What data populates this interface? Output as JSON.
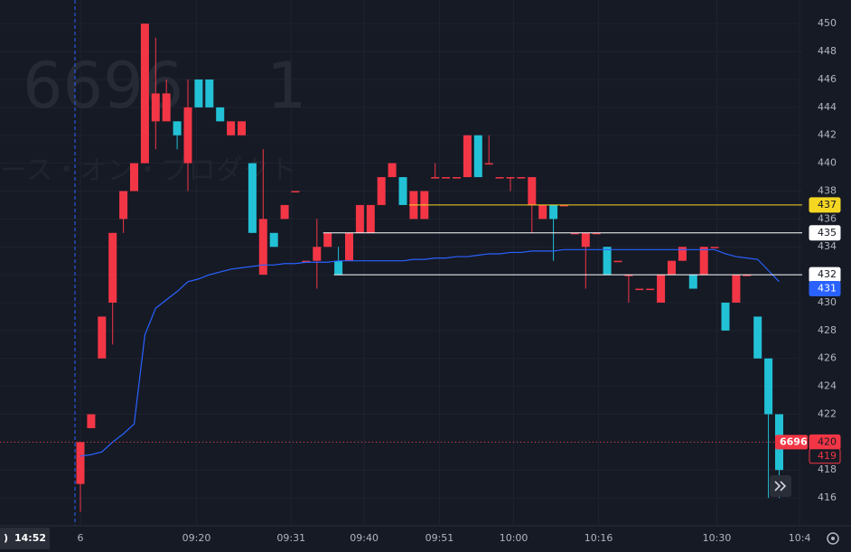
{
  "chart_data": {
    "type": "candlestick",
    "watermark": [
      "6696",
      "1"
    ],
    "watermark_subtitle": "ース・オン・プロダクト",
    "up_color": "#f23645",
    "down_color": "#22c1d6",
    "grid": true,
    "open": [
      417,
      421,
      426,
      430,
      436,
      438,
      440,
      443,
      443,
      443,
      440,
      446,
      446,
      444,
      442,
      442,
      440,
      432,
      435,
      436,
      438,
      433,
      433,
      434,
      433,
      433,
      435,
      435,
      437,
      439,
      439,
      436,
      436,
      439,
      439,
      439,
      439,
      442,
      440,
      439,
      439,
      439,
      437,
      436,
      437,
      437,
      435,
      434,
      435,
      434,
      433,
      432,
      431,
      431,
      430,
      432,
      433,
      432,
      432,
      434,
      430,
      430,
      432,
      429,
      426,
      422
    ],
    "high": [
      420,
      422,
      429,
      435,
      438,
      440,
      450,
      449,
      446,
      443,
      446,
      446,
      446,
      444,
      443,
      443,
      440,
      441,
      435,
      437,
      438,
      433,
      436,
      435,
      434,
      435,
      437,
      437,
      439,
      440,
      439,
      438,
      438,
      440,
      439,
      439,
      442,
      442,
      442,
      439,
      439,
      439,
      439,
      437,
      437,
      437,
      435,
      435,
      435,
      434,
      433,
      432,
      431,
      431,
      432,
      433,
      434,
      432,
      434,
      434,
      430,
      432,
      432,
      429,
      426,
      422
    ],
    "low": [
      415,
      421,
      426,
      427,
      435,
      438,
      440,
      441,
      443,
      441,
      438,
      444,
      444,
      443,
      442,
      442,
      435,
      432,
      434,
      436,
      438,
      433,
      431,
      434,
      432,
      433,
      435,
      435,
      437,
      439,
      437,
      436,
      436,
      439,
      439,
      439,
      439,
      439,
      440,
      439,
      438,
      439,
      435,
      436,
      433,
      437,
      435,
      431,
      435,
      432,
      433,
      430,
      431,
      431,
      430,
      432,
      433,
      431,
      432,
      434,
      428,
      430,
      432,
      426,
      416,
      416
    ],
    "close": [
      420,
      422,
      429,
      435,
      438,
      440,
      450,
      445,
      445,
      442,
      444,
      444,
      444,
      443,
      443,
      443,
      435,
      436,
      434,
      437,
      438,
      433,
      434,
      435,
      432,
      435,
      437,
      437,
      439,
      440,
      437,
      438,
      438,
      439,
      439,
      439,
      442,
      439,
      440,
      439,
      439,
      439,
      439,
      437,
      436,
      437,
      435,
      435,
      435,
      432,
      433,
      432,
      431,
      431,
      432,
      433,
      434,
      431,
      434,
      434,
      428,
      432,
      432,
      426,
      422,
      418
    ],
    "ma": {
      "color": "#2962ff",
      "values": [
        419,
        419.1,
        419.3,
        420,
        420.6,
        421.3,
        427.7,
        429.6,
        430.2,
        430.8,
        431.5,
        431.7,
        432,
        432.2,
        432.4,
        432.5,
        432.6,
        432.7,
        432.7,
        432.8,
        432.8,
        432.9,
        432.9,
        432.9,
        433,
        433,
        433,
        433,
        433,
        433,
        433,
        433.1,
        433.1,
        433.2,
        433.2,
        433.3,
        433.3,
        433.4,
        433.5,
        433.5,
        433.6,
        433.6,
        433.7,
        433.7,
        433.7,
        433.8,
        433.8,
        433.8,
        433.8,
        433.8,
        433.8,
        433.8,
        433.8,
        433.8,
        433.8,
        433.8,
        433.8,
        433.8,
        433.8,
        433.8,
        433.5,
        433.3,
        433.2,
        433.1,
        432.3,
        431.5
      ]
    },
    "ylim": [
      414,
      451.7
    ],
    "yticks": [
      416,
      418,
      420,
      422,
      424,
      426,
      428,
      430,
      432,
      434,
      436,
      438,
      440,
      442,
      444,
      446,
      448,
      450
    ],
    "xticks": [
      {
        "value": 0,
        "label": "6"
      },
      {
        "value": 10.8,
        "label": "09:20"
      },
      {
        "value": 19.6,
        "label": "09:31"
      },
      {
        "value": 26.4,
        "label": "09:40"
      },
      {
        "value": 33.4,
        "label": "09:51"
      },
      {
        "value": 40.3,
        "label": "10:00"
      },
      {
        "value": 48.2,
        "label": "10:16"
      },
      {
        "value": 59.2,
        "label": "10:30"
      },
      {
        "value": 66.9,
        "label": "10:4"
      }
    ],
    "price_lines": [
      {
        "value": 437,
        "color": "#f5d623"
      },
      {
        "value": 435,
        "color": "#ffffff"
      },
      {
        "value": 432,
        "color": "#ffffff"
      }
    ],
    "price_labels": [
      {
        "value": 437,
        "color": "#f5d623"
      },
      {
        "value": 435,
        "color": "#ffffff"
      },
      {
        "value": 432,
        "color": "#ffffff"
      },
      {
        "value": 431,
        "color": "#2962ff"
      },
      {
        "value": 420,
        "color": "#f23645"
      },
      {
        "value": 419,
        "color": "#161a25"
      }
    ],
    "last_price_tag": "6696",
    "last_price": 420,
    "time_label": "14:52",
    "left_label": ")"
  }
}
